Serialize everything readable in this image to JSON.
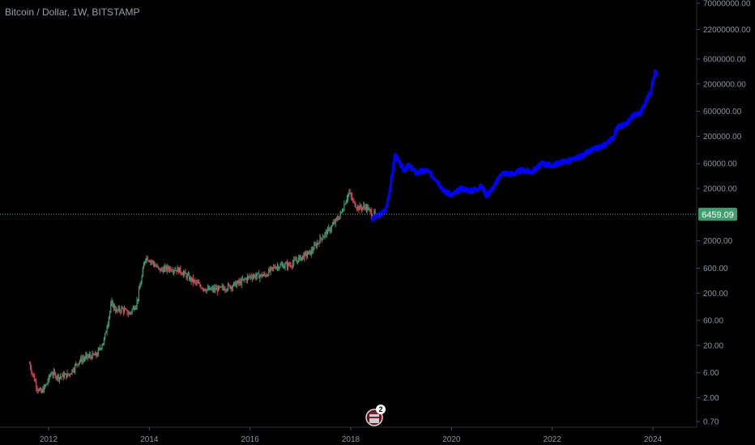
{
  "header": {
    "title": "Bitcoin / Dollar, 1W, BITSTAMP"
  },
  "colors": {
    "background": "#000000",
    "up": "#3f9d77",
    "down": "#c74a55",
    "projection": "#0000ff",
    "price_line": "#5fb887",
    "price_label_bg": "#3f9d6f",
    "axis_text": "#8f949e"
  },
  "badge": {
    "count": "2",
    "icon": "flag-icon"
  },
  "chart_data": {
    "type": "line",
    "yscale": "log",
    "ylim": [
      0.5,
      80000000
    ],
    "xlim": [
      2011.2,
      2025.0
    ],
    "y_ticks": [
      {
        "value": 70000000,
        "label": "70000000.00"
      },
      {
        "value": 22000000,
        "label": "22000000.00"
      },
      {
        "value": 6000000,
        "label": "6000000.00"
      },
      {
        "value": 2000000,
        "label": "2000000.00"
      },
      {
        "value": 600000,
        "label": "600000.00"
      },
      {
        "value": 200000,
        "label": "200000.00"
      },
      {
        "value": 60000,
        "label": "60000.00"
      },
      {
        "value": 20000,
        "label": "20000.00"
      },
      {
        "value": 2000,
        "label": "2000.00"
      },
      {
        "value": 600,
        "label": "600.00"
      },
      {
        "value": 200,
        "label": "200.00"
      },
      {
        "value": 60,
        "label": "60.00"
      },
      {
        "value": 20,
        "label": "20.00"
      },
      {
        "value": 6,
        "label": "6.00"
      },
      {
        "value": 2,
        "label": "2.00"
      },
      {
        "value": 0.7,
        "label": "0.70"
      }
    ],
    "x_ticks": [
      {
        "value": 2012,
        "label": "2012"
      },
      {
        "value": 2014,
        "label": "2014"
      },
      {
        "value": 2016,
        "label": "2016"
      },
      {
        "value": 2018,
        "label": "2018"
      },
      {
        "value": 2020,
        "label": "2020"
      },
      {
        "value": 2022,
        "label": "2022"
      },
      {
        "value": 2024,
        "label": "2024"
      }
    ],
    "current_price": {
      "value": 6459.09,
      "label": "6459.09"
    },
    "history": [
      {
        "x": 2011.62,
        "y": 9
      },
      {
        "x": 2011.7,
        "y": 5
      },
      {
        "x": 2011.78,
        "y": 3
      },
      {
        "x": 2011.85,
        "y": 2.5
      },
      {
        "x": 2011.95,
        "y": 3.5
      },
      {
        "x": 2012.05,
        "y": 6
      },
      {
        "x": 2012.2,
        "y": 5
      },
      {
        "x": 2012.4,
        "y": 5.5
      },
      {
        "x": 2012.6,
        "y": 10
      },
      {
        "x": 2012.75,
        "y": 12
      },
      {
        "x": 2012.95,
        "y": 13
      },
      {
        "x": 2013.1,
        "y": 25
      },
      {
        "x": 2013.25,
        "y": 130
      },
      {
        "x": 2013.35,
        "y": 90
      },
      {
        "x": 2013.45,
        "y": 100
      },
      {
        "x": 2013.6,
        "y": 80
      },
      {
        "x": 2013.75,
        "y": 130
      },
      {
        "x": 2013.85,
        "y": 400
      },
      {
        "x": 2013.92,
        "y": 1000
      },
      {
        "x": 2014.05,
        "y": 800
      },
      {
        "x": 2014.2,
        "y": 550
      },
      {
        "x": 2014.4,
        "y": 600
      },
      {
        "x": 2014.6,
        "y": 550
      },
      {
        "x": 2014.8,
        "y": 380
      },
      {
        "x": 2015.0,
        "y": 280
      },
      {
        "x": 2015.15,
        "y": 230
      },
      {
        "x": 2015.4,
        "y": 240
      },
      {
        "x": 2015.6,
        "y": 270
      },
      {
        "x": 2015.8,
        "y": 320
      },
      {
        "x": 2016.0,
        "y": 420
      },
      {
        "x": 2016.3,
        "y": 440
      },
      {
        "x": 2016.5,
        "y": 650
      },
      {
        "x": 2016.8,
        "y": 700
      },
      {
        "x": 2017.0,
        "y": 950
      },
      {
        "x": 2017.2,
        "y": 1200
      },
      {
        "x": 2017.4,
        "y": 2200
      },
      {
        "x": 2017.6,
        "y": 3500
      },
      {
        "x": 2017.8,
        "y": 6500
      },
      {
        "x": 2017.96,
        "y": 17000
      },
      {
        "x": 2018.05,
        "y": 11000
      },
      {
        "x": 2018.15,
        "y": 8500
      },
      {
        "x": 2018.3,
        "y": 9000
      },
      {
        "x": 2018.42,
        "y": 6500
      },
      {
        "x": 2018.5,
        "y": 6459
      }
    ],
    "projection": [
      {
        "x": 2018.42,
        "y": 5000
      },
      {
        "x": 2018.5,
        "y": 5800
      },
      {
        "x": 2018.6,
        "y": 6500
      },
      {
        "x": 2018.7,
        "y": 8000
      },
      {
        "x": 2018.8,
        "y": 25000
      },
      {
        "x": 2018.88,
        "y": 90000
      },
      {
        "x": 2018.95,
        "y": 65000
      },
      {
        "x": 2019.05,
        "y": 45000
      },
      {
        "x": 2019.15,
        "y": 55000
      },
      {
        "x": 2019.3,
        "y": 40000
      },
      {
        "x": 2019.5,
        "y": 45000
      },
      {
        "x": 2019.7,
        "y": 30000
      },
      {
        "x": 2019.85,
        "y": 18000
      },
      {
        "x": 2020.0,
        "y": 15000
      },
      {
        "x": 2020.2,
        "y": 20000
      },
      {
        "x": 2020.4,
        "y": 18000
      },
      {
        "x": 2020.6,
        "y": 22000
      },
      {
        "x": 2020.7,
        "y": 15000
      },
      {
        "x": 2020.85,
        "y": 22000
      },
      {
        "x": 2021.0,
        "y": 40000
      },
      {
        "x": 2021.2,
        "y": 38000
      },
      {
        "x": 2021.4,
        "y": 45000
      },
      {
        "x": 2021.6,
        "y": 42000
      },
      {
        "x": 2021.8,
        "y": 60000
      },
      {
        "x": 2022.0,
        "y": 55000
      },
      {
        "x": 2022.2,
        "y": 65000
      },
      {
        "x": 2022.4,
        "y": 70000
      },
      {
        "x": 2022.6,
        "y": 85000
      },
      {
        "x": 2022.8,
        "y": 110000
      },
      {
        "x": 2023.0,
        "y": 130000
      },
      {
        "x": 2023.2,
        "y": 180000
      },
      {
        "x": 2023.3,
        "y": 300000
      },
      {
        "x": 2023.45,
        "y": 330000
      },
      {
        "x": 2023.6,
        "y": 500000
      },
      {
        "x": 2023.75,
        "y": 550000
      },
      {
        "x": 2023.85,
        "y": 900000
      },
      {
        "x": 2023.95,
        "y": 1400000
      },
      {
        "x": 2024.05,
        "y": 3500000
      },
      {
        "x": 2024.1,
        "y": 2500000
      }
    ]
  }
}
